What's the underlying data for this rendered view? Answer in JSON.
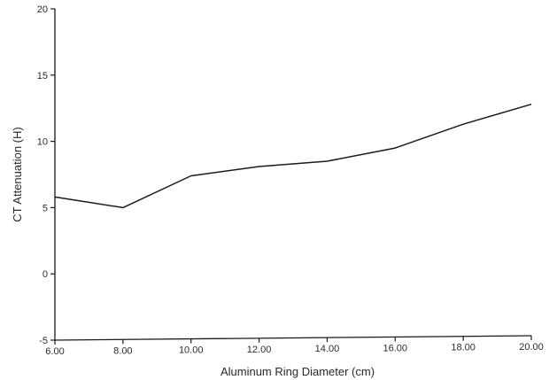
{
  "chart_data": {
    "type": "line",
    "title": "",
    "xlabel": "Aluminum Ring Diameter (cm)",
    "ylabel": "CT Attenuation (H)",
    "xlim": [
      6,
      20
    ],
    "ylim": [
      -5,
      20
    ],
    "grid": false,
    "x_ticks": [
      {
        "value": 6,
        "label": "6.00"
      },
      {
        "value": 8,
        "label": "8.00"
      },
      {
        "value": 10,
        "label": "10.00"
      },
      {
        "value": 12,
        "label": "12.00"
      },
      {
        "value": 14,
        "label": "14.00"
      },
      {
        "value": 16,
        "label": "16.00"
      },
      {
        "value": 18,
        "label": "18.00"
      },
      {
        "value": 20,
        "label": "20.00"
      }
    ],
    "y_ticks": [
      {
        "value": -5,
        "label": "-5"
      },
      {
        "value": 0,
        "label": "0"
      },
      {
        "value": 5,
        "label": "5"
      },
      {
        "value": 10,
        "label": "10"
      },
      {
        "value": 15,
        "label": "15"
      },
      {
        "value": 20,
        "label": "20"
      }
    ],
    "series": [
      {
        "x": [
          6,
          8,
          10,
          12,
          14,
          16,
          18,
          20
        ],
        "y": [
          5.8,
          5.0,
          7.4,
          8.1,
          8.5,
          9.5,
          11.3,
          12.8
        ]
      }
    ],
    "colors": {
      "line": "#1a1a1a",
      "axis": "#1a1a1a",
      "text": "#2a2a2a"
    }
  }
}
